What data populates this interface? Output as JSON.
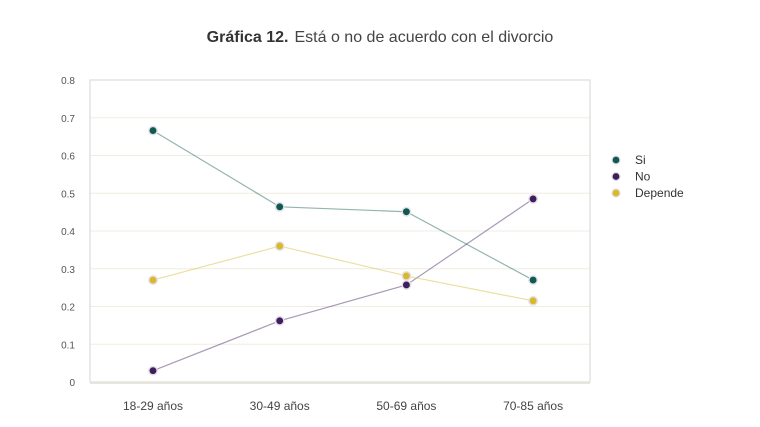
{
  "chart_data": {
    "type": "line",
    "title_bold": "Gráfica 12.",
    "title": "Está o no de acuerdo con el divorcio",
    "xlabel": "",
    "ylabel": "",
    "categories": [
      "18-29 años",
      "30-49 años",
      "50-69 años",
      "70-85 años"
    ],
    "ylim": [
      0,
      0.8
    ],
    "yticks": [
      "0",
      "0.1",
      "0.2",
      "0.3",
      "0.4",
      "0.5",
      "0.6",
      "0.7",
      "0.8"
    ],
    "grid": true,
    "legend_position": "right",
    "series": [
      {
        "name": "Si",
        "color": "#0f5a50",
        "values": [
          0.666,
          0.464,
          0.451,
          0.27
        ]
      },
      {
        "name": "No",
        "color": "#3d1f5c",
        "values": [
          0.03,
          0.162,
          0.257,
          0.485
        ]
      },
      {
        "name": "Depende",
        "color": "#d8b92a",
        "values": [
          0.27,
          0.36,
          0.281,
          0.215
        ]
      }
    ]
  }
}
